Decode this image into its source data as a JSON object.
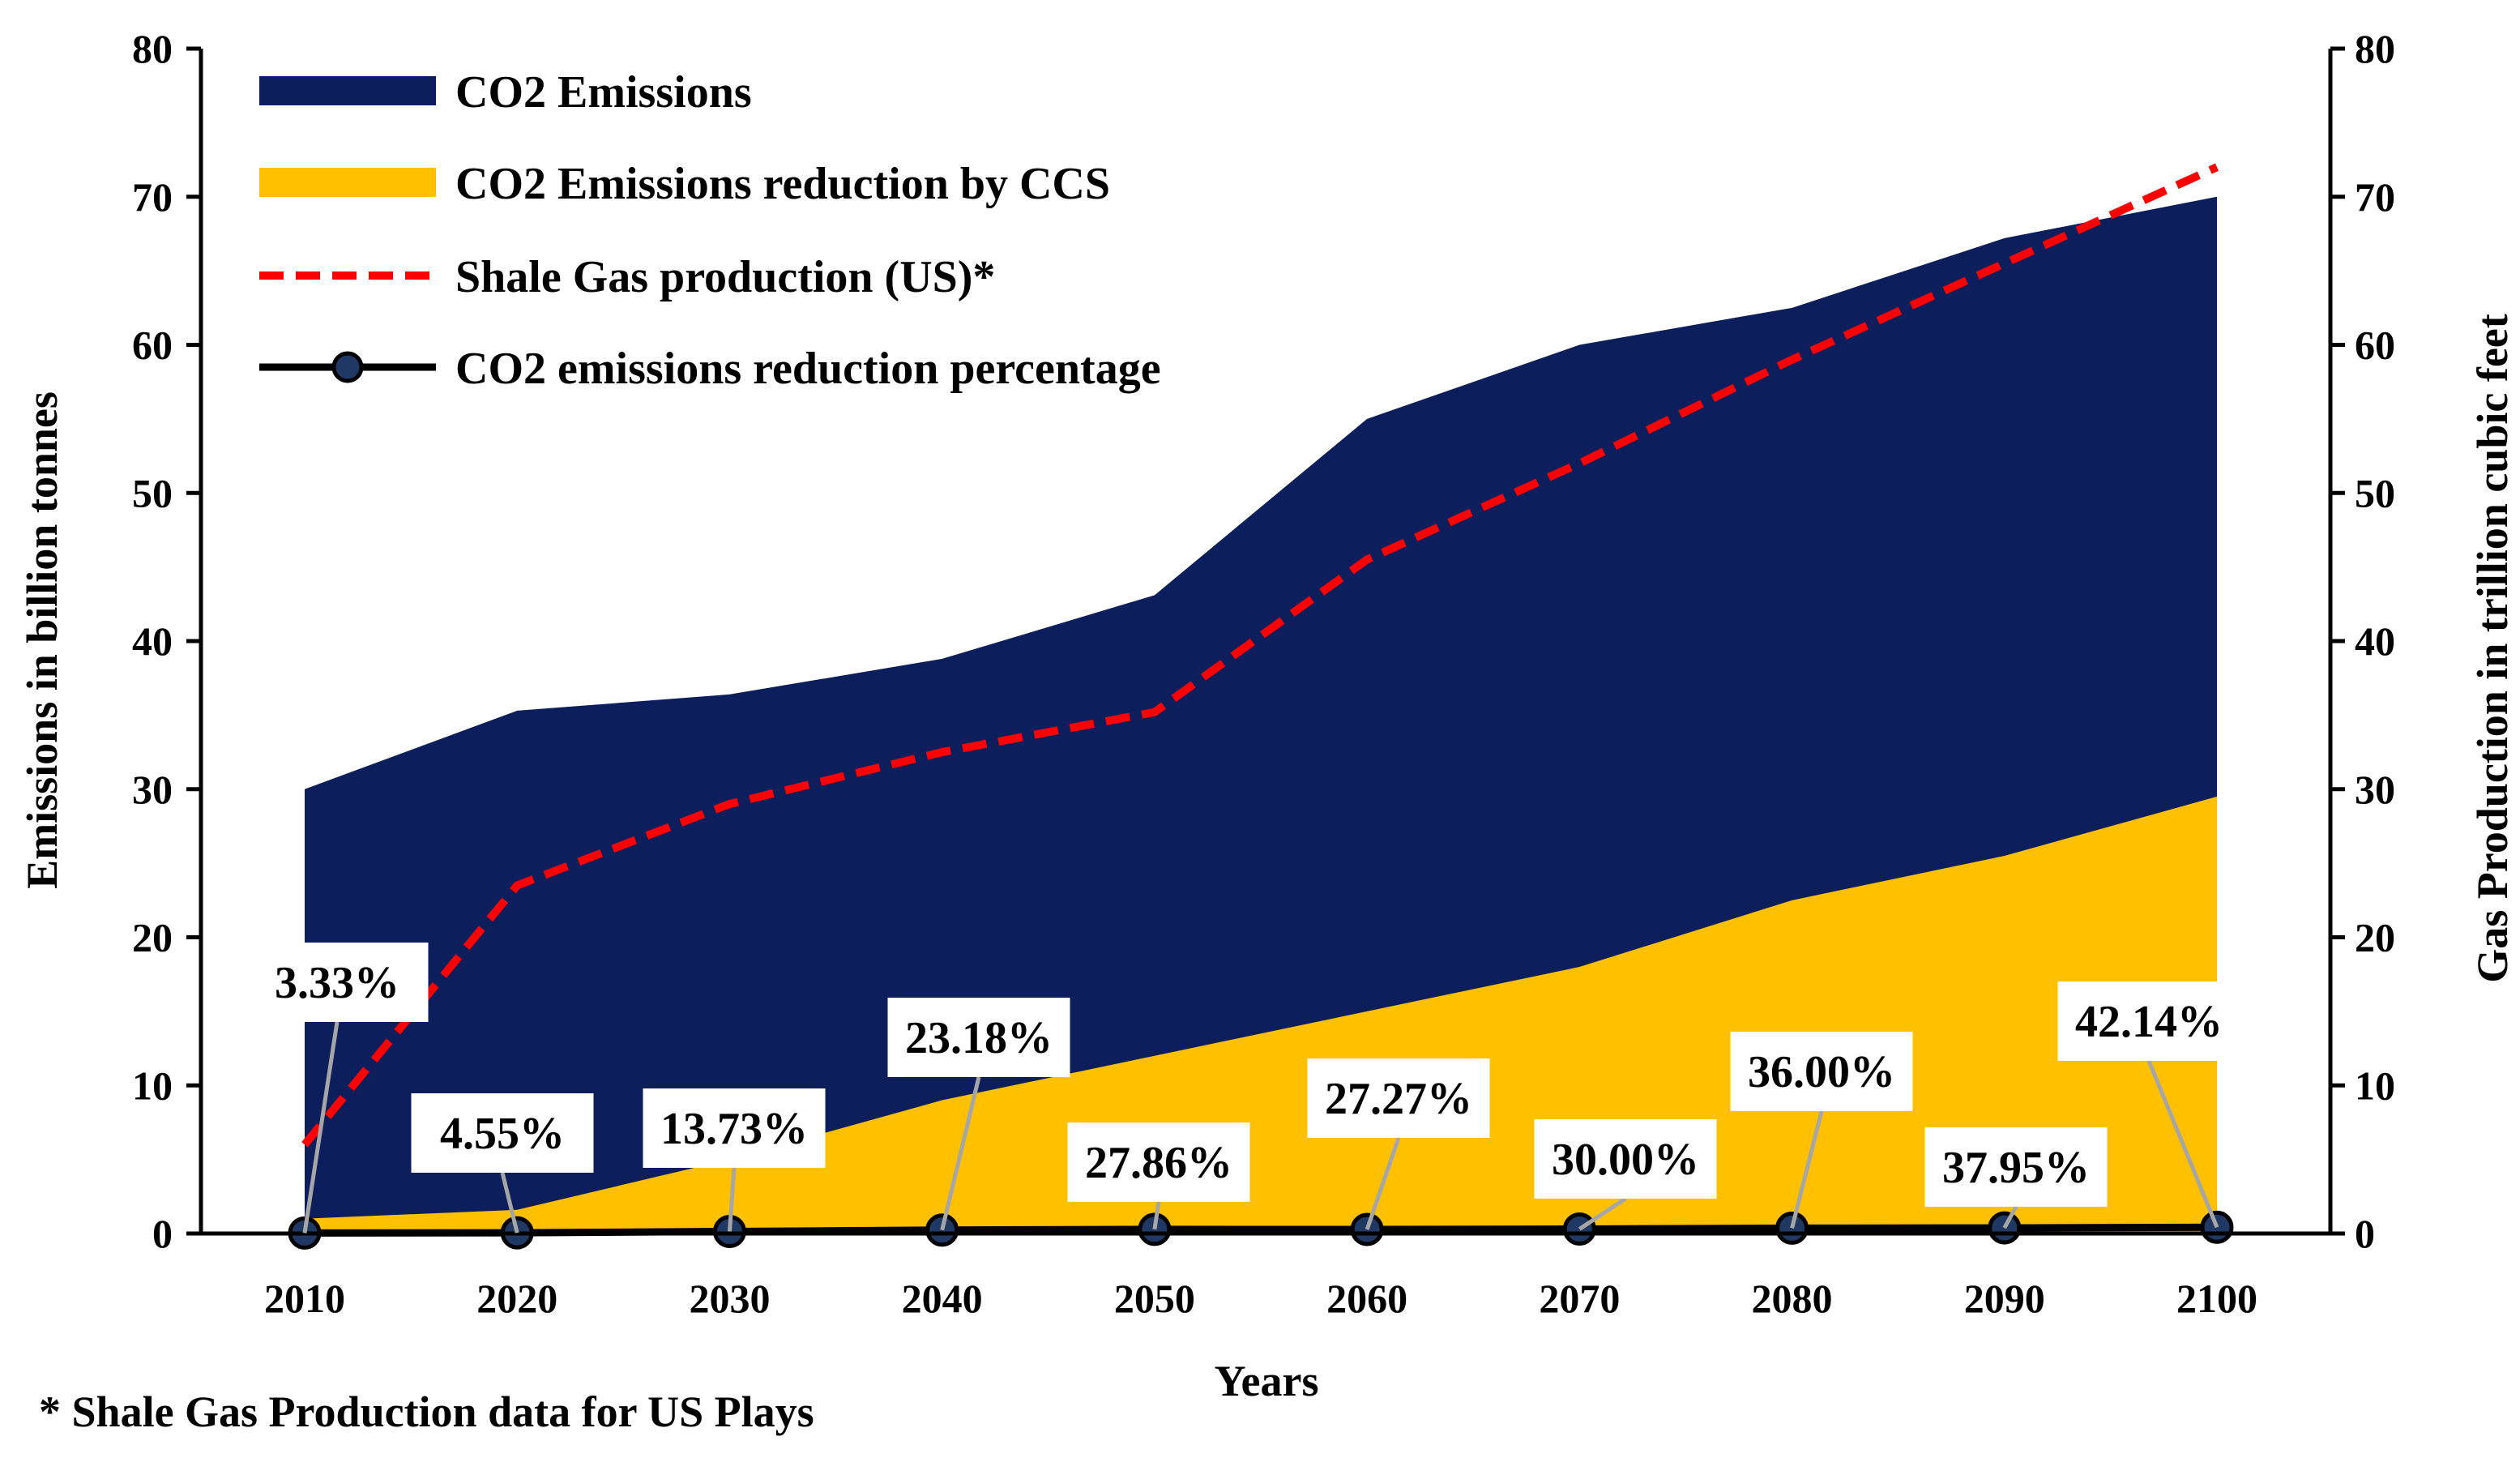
{
  "chart_data": {
    "type": "area",
    "categories": [
      "2010",
      "2020",
      "2030",
      "2040",
      "2050",
      "2060",
      "2070",
      "2080",
      "2090",
      "2100"
    ],
    "series": [
      {
        "name": "CO2 Emissions",
        "type": "area",
        "axis": "left",
        "color": "#0c1e5b",
        "values": [
          30,
          35.3,
          36.4,
          38.8,
          43.1,
          55,
          60,
          62.5,
          67.2,
          70
        ]
      },
      {
        "name": "CO2 Emissions reduction by CCS",
        "type": "area",
        "axis": "left",
        "color": "#ffc000",
        "values": [
          1,
          1.6,
          5,
          9,
          12,
          15,
          18,
          22.5,
          25.5,
          29.5
        ]
      },
      {
        "name": "Shale Gas production (US)*",
        "type": "line",
        "style": "dashed",
        "axis": "right",
        "color": "#ff0000",
        "values": [
          6,
          23.5,
          29,
          32.5,
          35.2,
          45.5,
          52,
          59,
          65.5,
          72
        ]
      },
      {
        "name": "CO2 emissions reduction percentage",
        "type": "line",
        "marker": "circle",
        "axis": "left",
        "color": "#000000",
        "marker_color": "#1f3864",
        "values": [
          0.0333,
          0.0455,
          0.1373,
          0.2318,
          0.2786,
          0.2727,
          0.3,
          0.36,
          0.3795,
          0.4214
        ],
        "data_labels": [
          "3.33%",
          "4.55%",
          "13.73%",
          "23.18%",
          "27.86%",
          "27.27%",
          "30.00%",
          "36.00%",
          "37.95%",
          "42.14%"
        ]
      }
    ],
    "xlabel": "Years",
    "ylabel": "Emissions in billion tonnes",
    "y2label": "Gas Production in trillion cubic feet",
    "ylim": [
      0,
      80
    ],
    "y2lim": [
      0,
      80
    ],
    "yticks": [
      "0",
      "10",
      "20",
      "30",
      "40",
      "50",
      "60",
      "70",
      "80"
    ],
    "y2ticks": [
      "0",
      "10",
      "20",
      "30",
      "40",
      "50",
      "60",
      "70",
      "80"
    ],
    "grid": false,
    "legend_position": "top-left",
    "footnote": "* Shale Gas Production data for US Plays"
  }
}
